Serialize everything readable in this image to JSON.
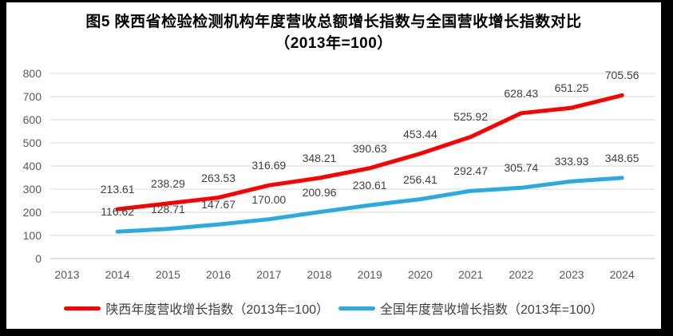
{
  "title": {
    "line1": "图5  陕西省检验检测机构年度营收总额增长指数与全国营收增长指数对比",
    "line2": "（2013年=100）"
  },
  "chart_data": {
    "type": "line",
    "categories": [
      "2013",
      "2014",
      "2015",
      "2016",
      "2017",
      "2018",
      "2019",
      "2020",
      "2021",
      "2022",
      "2023",
      "2024"
    ],
    "series": [
      {
        "name": "陕西年度营收增长指数（2013年=100）",
        "color": "#fe0000",
        "values": [
          null,
          213.61,
          238.29,
          263.53,
          316.69,
          348.21,
          390.63,
          453.44,
          525.92,
          628.43,
          651.25,
          705.56
        ],
        "labels": [
          null,
          "213.61",
          "238.29",
          "263.53",
          "316.69",
          "348.21",
          "390.63",
          "453.44",
          "525.92",
          "628.43",
          "651.25",
          "705.56"
        ]
      },
      {
        "name": "全国年度营收增长指数（2013年=100）",
        "color": "#29abe2",
        "values": [
          null,
          116.62,
          128.71,
          147.67,
          170.0,
          200.96,
          230.61,
          256.41,
          292.47,
          305.74,
          333.93,
          348.65
        ],
        "labels": [
          null,
          "116.62",
          "128.71",
          "147.67",
          "170.00",
          "200.96",
          "230.61",
          "256.41",
          "292.47",
          "305.74",
          "333.93",
          "348.65"
        ]
      }
    ],
    "xlabel": "",
    "ylabel": "",
    "ylim": [
      0,
      800
    ],
    "ytick_interval": 100,
    "yticks": [
      "0",
      "100",
      "200",
      "300",
      "400",
      "500",
      "600",
      "700",
      "800"
    ],
    "grid": true,
    "grid_color": "#d9d9d9",
    "axis_line_color": "#bfbfbf",
    "legend_position": "bottom"
  }
}
